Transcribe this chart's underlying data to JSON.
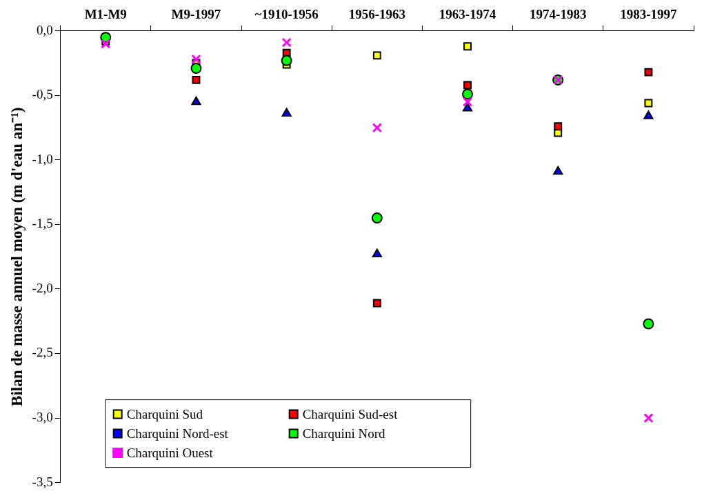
{
  "chart_data": {
    "type": "scatter",
    "ylabel": "Bilan de masse annuel moyen (m d'eau an⁻¹)",
    "categories": [
      "M1-M9",
      "M9-1997",
      "~1910-1956",
      "1956-1963",
      "1963-1974",
      "1974-1983",
      "1983-1997"
    ],
    "ylim": [
      -3.5,
      0
    ],
    "yticks": [
      {
        "value": 0,
        "label": "0,0"
      },
      {
        "value": -0.5,
        "label": "-0,5"
      },
      {
        "value": -1,
        "label": "-1,0"
      },
      {
        "value": -1.5,
        "label": "-1,5"
      },
      {
        "value": -2,
        "label": "-2,0"
      },
      {
        "value": -2.5,
        "label": "-2,5"
      },
      {
        "value": -3,
        "label": "-3,0"
      },
      {
        "value": -3.5,
        "label": "-3,5"
      }
    ],
    "grid": false,
    "legend": "bottom left",
    "series": [
      {
        "name": "Charquini Sud",
        "color": "#ffff00",
        "marker": "square",
        "values": [
          -0.08,
          -0.25,
          -0.26,
          -0.19,
          -0.12,
          -0.79,
          -0.56
        ]
      },
      {
        "name": "Charquini Sud-est",
        "color": "#ff0000",
        "marker": "square",
        "values": [
          null,
          -0.38,
          -0.17,
          -2.11,
          -0.42,
          -0.74,
          -0.32
        ]
      },
      {
        "name": "Charquini Nord-est",
        "color": "#0000ff",
        "marker": "triangle",
        "values": [
          null,
          -0.55,
          -0.64,
          -1.73,
          -0.6,
          -1.09,
          -0.66
        ]
      },
      {
        "name": "Charquini Nord",
        "color": "#00ff00",
        "marker": "circle",
        "values": [
          -0.05,
          -0.29,
          -0.23,
          -1.45,
          -0.49,
          -0.38,
          -2.27
        ]
      },
      {
        "name": "Charquini Ouest",
        "color": "#ff00ff",
        "marker": "cross",
        "values": [
          -0.1,
          -0.22,
          -0.09,
          -0.75,
          -0.55,
          -0.38,
          -3.0
        ]
      }
    ]
  }
}
